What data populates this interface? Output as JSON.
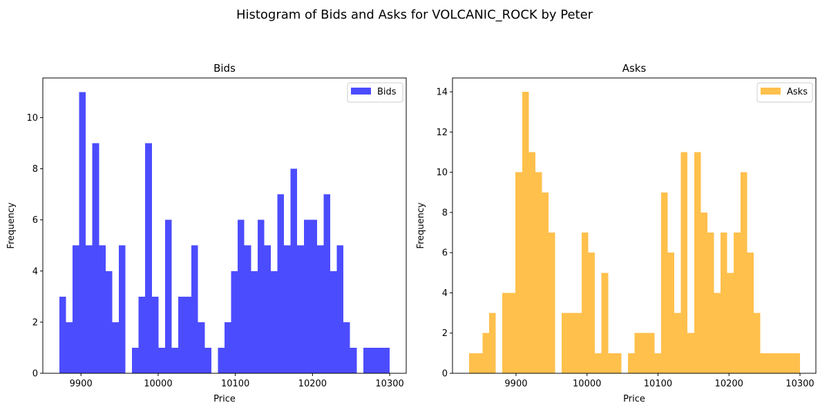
{
  "title": "Histogram of Bids and Asks for VOLCANIC_ROCK by Peter",
  "chart_data": [
    {
      "type": "histogram",
      "title": "Bids",
      "x_label": "Price",
      "y_label": "Frequency",
      "bins": [
        9872,
        9880.56,
        9889.12,
        9897.68,
        9906.24,
        9914.8,
        9923.36,
        9931.92,
        9940.48,
        9949.04,
        9957.6,
        9966.16,
        9974.72,
        9983.28,
        9991.84,
        10000.4,
        10008.96,
        10017.52,
        10026.08,
        10034.64,
        10043.2,
        10051.76,
        10060.32,
        10068.88,
        10077.44,
        10086,
        10094.56,
        10103.12,
        10111.68,
        10120.24,
        10128.8,
        10137.36,
        10145.92,
        10154.48,
        10163.04,
        10171.6,
        10180.16,
        10188.72,
        10197.28,
        10205.84,
        10214.4,
        10222.96,
        10231.52,
        10240.08,
        10248.64,
        10257.2,
        10265.76,
        10274.32,
        10282.88,
        10291.44,
        10300
      ],
      "series": [
        {
          "name": "Bids",
          "color": "#0000ff",
          "opacity": 0.7,
          "values": [
            3,
            2,
            5,
            11,
            5,
            9,
            5,
            4,
            2,
            5,
            0,
            1,
            3,
            9,
            3,
            1,
            6,
            1,
            3,
            3,
            5,
            2,
            1,
            0,
            1,
            2,
            4,
            6,
            5,
            4,
            6,
            5,
            4,
            7,
            5,
            8,
            5,
            6,
            6,
            5,
            7,
            4,
            5,
            2,
            1,
            0,
            1,
            1,
            1,
            1
          ]
        }
      ],
      "xlim": [
        9850.6,
        10321.4
      ],
      "xticks": [
        9900,
        10000,
        10100,
        10200,
        10300
      ],
      "ylim": [
        0,
        11.55
      ],
      "yticks": [
        0,
        2,
        4,
        6,
        8,
        10
      ],
      "legend": "upper right"
    },
    {
      "type": "histogram",
      "title": "Asks",
      "x_label": "Price",
      "y_label": "Frequency",
      "bins": [
        9834,
        9843.32,
        9852.64,
        9861.96,
        9871.28,
        9880.6,
        9889.92,
        9899.24,
        9908.56,
        9917.88,
        9927.2,
        9936.52,
        9945.84,
        9955.16,
        9964.48,
        9973.8,
        9983.12,
        9992.44,
        10001.76,
        10011.08,
        10020.4,
        10029.72,
        10039.04,
        10048.36,
        10057.68,
        10067,
        10076.32,
        10085.64,
        10094.96,
        10104.28,
        10113.6,
        10122.92,
        10132.24,
        10141.56,
        10150.88,
        10160.2,
        10169.52,
        10178.84,
        10188.16,
        10197.48,
        10206.8,
        10216.12,
        10225.44,
        10234.76,
        10244.08,
        10253.4,
        10262.72,
        10272.04,
        10281.36,
        10290.68,
        10300
      ],
      "series": [
        {
          "name": "Asks",
          "color": "#ffa500",
          "opacity": 0.7,
          "values": [
            1,
            1,
            2,
            3,
            0,
            4,
            4,
            10,
            14,
            11,
            10,
            9,
            7,
            0,
            3,
            3,
            3,
            7,
            6,
            1,
            5,
            1,
            1,
            0,
            1,
            2,
            2,
            2,
            1,
            9,
            6,
            3,
            11,
            2,
            11,
            8,
            7,
            4,
            7,
            5,
            7,
            10,
            6,
            3,
            1,
            1,
            1,
            1,
            1,
            1
          ]
        }
      ],
      "xlim": [
        9810.5,
        10322.4
      ],
      "xticks": [
        9900,
        10000,
        10100,
        10200,
        10300
      ],
      "ylim": [
        0,
        14.69
      ],
      "yticks": [
        0,
        2,
        4,
        6,
        8,
        10,
        12,
        14
      ],
      "legend": "upper right"
    }
  ]
}
